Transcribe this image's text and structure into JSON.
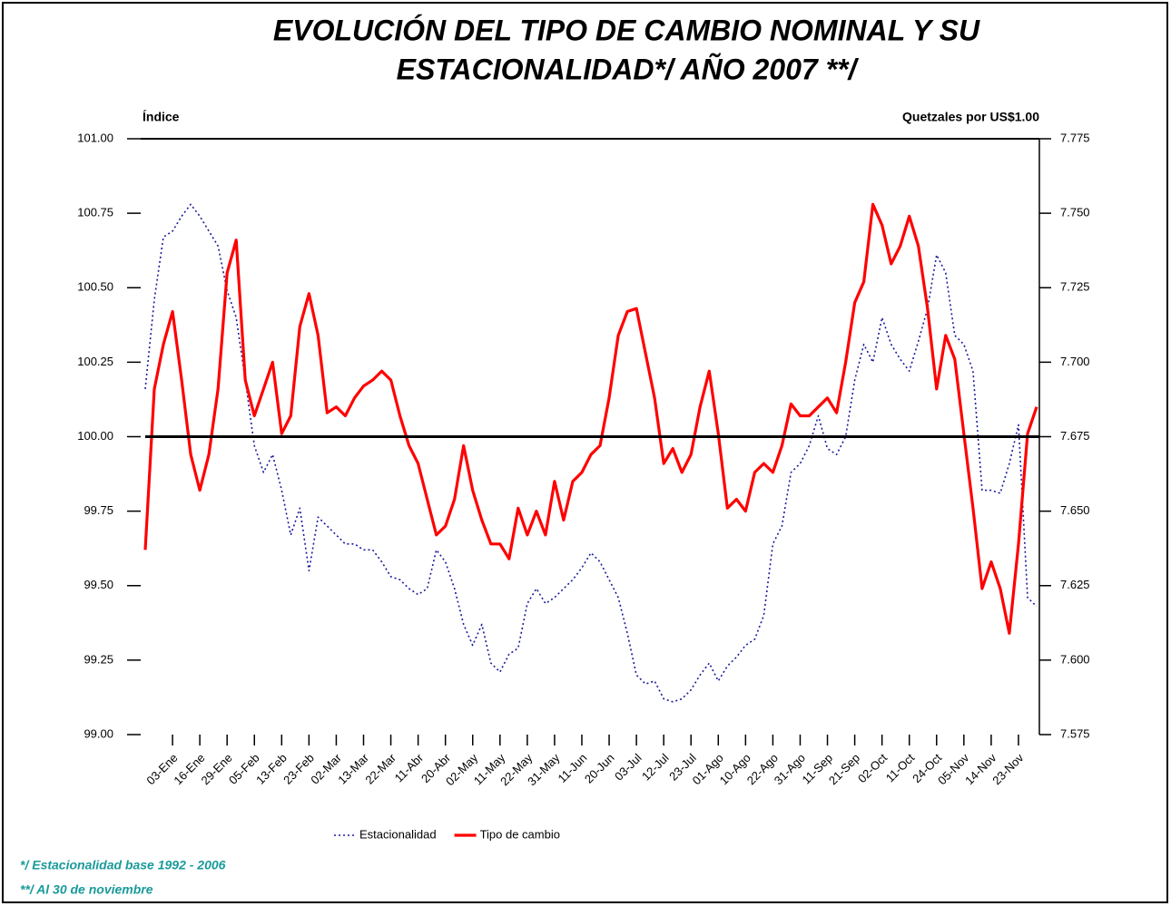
{
  "chart_data": {
    "type": "line",
    "title": [
      "EVOLUCIÓN DEL TIPO DE CAMBIO NOMINAL Y SU",
      "ESTACIONALIDAD*/ AÑO 2007 **/"
    ],
    "y_label": "Índice",
    "y2_label": "Quetzales por US$1.00",
    "notes": [
      "*/ Estacionalidad base 1992 - 2006",
      "**/ Al 30 de noviembre"
    ],
    "categories": [
      null,
      null,
      null,
      "03-Ene",
      null,
      null,
      "16-Ene",
      null,
      null,
      "29-Ene",
      null,
      null,
      "05-Feb",
      null,
      null,
      "13-Feb",
      null,
      null,
      "23-Feb",
      null,
      null,
      "02-Mar",
      null,
      null,
      "13-Mar",
      null,
      null,
      "22-Mar",
      null,
      null,
      "11-Abr",
      null,
      null,
      "20-Abr",
      null,
      null,
      "02-May",
      null,
      null,
      "11-May",
      null,
      null,
      "22-May",
      null,
      null,
      "31-May",
      null,
      null,
      "11-Jun",
      null,
      null,
      "20-Jun",
      null,
      null,
      "03-Jul",
      null,
      null,
      "12-Jul",
      null,
      null,
      "23-Jul",
      null,
      null,
      "01-Ago",
      null,
      null,
      "10-Ago",
      null,
      null,
      "22-Ago",
      null,
      null,
      "31-Ago",
      null,
      null,
      "11-Sep",
      null,
      null,
      "21-Sep",
      null,
      null,
      "02-Oct",
      null,
      null,
      "11-Oct",
      null,
      null,
      "24-Oct",
      null,
      null,
      "05-Nov",
      null,
      null,
      "14-Nov",
      null,
      null,
      "23-Nov",
      null,
      null
    ],
    "series": [
      {
        "name": "Estacionalidad",
        "color": "#1a1a9c",
        "dashed": true,
        "values": [
          100.16,
          100.46,
          100.67,
          100.69,
          100.74,
          100.78,
          100.74,
          100.69,
          100.64,
          100.49,
          100.4,
          100.19,
          99.97,
          99.88,
          99.94,
          99.82,
          99.67,
          99.76,
          99.55,
          99.73,
          99.7,
          99.67,
          99.64,
          99.64,
          99.62,
          99.62,
          99.58,
          99.53,
          99.52,
          99.49,
          99.47,
          99.49,
          99.62,
          99.58,
          99.49,
          99.37,
          99.3,
          99.37,
          99.24,
          99.21,
          99.27,
          99.29,
          99.44,
          99.49,
          99.44,
          99.46,
          99.49,
          99.52,
          99.56,
          99.61,
          99.58,
          99.52,
          99.46,
          99.34,
          99.2,
          99.17,
          99.18,
          99.12,
          99.11,
          99.12,
          99.15,
          99.2,
          99.24,
          99.18,
          99.23,
          99.26,
          99.3,
          99.32,
          99.4,
          99.64,
          99.7,
          99.88,
          99.91,
          99.97,
          100.07,
          99.96,
          99.94,
          100.0,
          100.19,
          100.31,
          100.25,
          100.4,
          100.31,
          100.26,
          100.22,
          100.32,
          100.43,
          100.61,
          100.55,
          100.34,
          100.31,
          100.22,
          99.82,
          99.82,
          99.81,
          99.91,
          100.04,
          99.46,
          99.43
        ]
      },
      {
        "name": "Tipo de cambio",
        "color": "#ff0000",
        "axis": "y2",
        "values": [
          7.637,
          7.691,
          7.706,
          7.717,
          7.694,
          7.669,
          7.657,
          7.669,
          7.691,
          7.73,
          7.741,
          7.694,
          7.682,
          7.691,
          7.7,
          7.676,
          7.682,
          7.712,
          7.723,
          7.709,
          7.683,
          7.685,
          7.682,
          7.688,
          7.692,
          7.694,
          7.697,
          7.694,
          7.682,
          7.672,
          7.666,
          7.654,
          7.642,
          7.645,
          7.654,
          7.672,
          7.657,
          7.647,
          7.639,
          7.639,
          7.634,
          7.651,
          7.642,
          7.65,
          7.642,
          7.66,
          7.647,
          7.66,
          7.663,
          7.669,
          7.672,
          7.688,
          7.709,
          7.717,
          7.718,
          7.703,
          7.688,
          7.666,
          7.671,
          7.663,
          7.669,
          7.685,
          7.697,
          7.676,
          7.651,
          7.654,
          7.65,
          7.663,
          7.666,
          7.663,
          7.672,
          7.686,
          7.682,
          7.682,
          7.685,
          7.688,
          7.683,
          7.7,
          7.72,
          7.727,
          7.753,
          7.746,
          7.733,
          7.739,
          7.749,
          7.739,
          7.718,
          7.691,
          7.709,
          7.701,
          7.676,
          7.651,
          7.624,
          7.633,
          7.624,
          7.609,
          7.639,
          7.676,
          7.685
        ]
      }
    ],
    "ylim": [
      99,
      101
    ],
    "yticks": [
      {
        "value": 99,
        "label": "99.00"
      },
      {
        "value": 99.25,
        "label": "99.25"
      },
      {
        "value": 99.5,
        "label": "99.50"
      },
      {
        "value": 99.75,
        "label": "99.75"
      },
      {
        "value": 100,
        "label": "100.00"
      },
      {
        "value": 100.25,
        "label": "100.25"
      },
      {
        "value": 100.5,
        "label": "100.50"
      },
      {
        "value": 100.75,
        "label": "100.75"
      },
      {
        "value": 101,
        "label": "101.00"
      }
    ],
    "y2lim": [
      7.575,
      7.775
    ],
    "y2ticks": [
      7.575,
      {
        "value": 7.6,
        "label": "7.600"
      },
      7.625,
      {
        "value": 7.65,
        "label": "7.650"
      },
      7.675,
      {
        "value": 7.7,
        "label": "7.700"
      },
      7.725,
      {
        "value": 7.75,
        "label": "7.750"
      },
      7.775
    ],
    "reference_line": 100,
    "legend": "bottom"
  }
}
